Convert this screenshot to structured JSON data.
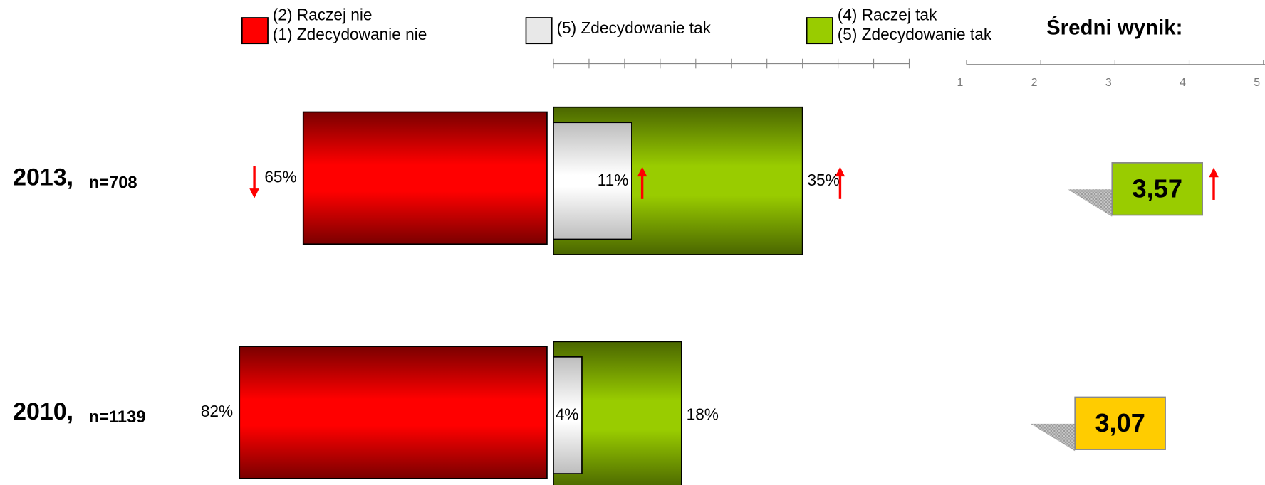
{
  "chart_data": {
    "type": "diverging_bar",
    "title": "Średni wynik:",
    "legend": [
      {
        "name": [
          "(2) Raczej nie",
          "(1) Zdecydowanie nie"
        ],
        "color": "#ff0000"
      },
      {
        "name": [
          "(5) Zdecydowanie tak"
        ],
        "color": "#e8e8e8"
      },
      {
        "name": [
          "(4) Raczej tak",
          "(5) Zdecydowanie tak"
        ],
        "color": "#99cc00"
      }
    ],
    "xlim": [
      0,
      50
    ],
    "xticks": [
      0,
      5,
      10,
      15,
      20,
      25,
      30,
      35,
      40,
      45,
      50
    ],
    "mean_lim": [
      1,
      5
    ],
    "mean_ticks": [
      1,
      2,
      3,
      4,
      5
    ],
    "rows": [
      {
        "year": "2013,",
        "n": "n=708",
        "values": [
          65,
          11,
          35
        ],
        "value_labels": [
          "65%",
          "11%",
          "35%"
        ],
        "arrows": [
          "down",
          "up",
          "up"
        ],
        "mean": 3.57,
        "mean_label": "3,57",
        "mean_color": "#99cc00",
        "mean_arrow": "up"
      },
      {
        "year": "2010,",
        "n": "n=1139",
        "values": [
          82,
          4,
          18
        ],
        "value_labels": [
          "82%",
          "4%",
          "18%"
        ],
        "mean": 3.07,
        "mean_label": "3,07",
        "mean_color": "#ffcc00"
      }
    ]
  }
}
